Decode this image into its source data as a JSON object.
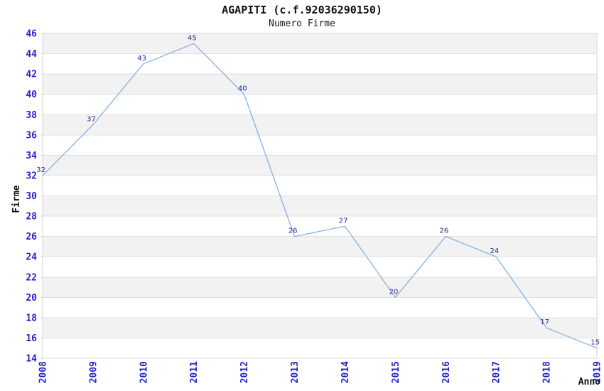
{
  "header": {
    "title": "AGAPITI (c.f.92036290150)",
    "subtitle": "Numero Firme"
  },
  "chart_data": {
    "type": "line",
    "title": "AGAPITI (c.f.92036290150)",
    "subtitle": "Numero Firme",
    "x": [
      2008,
      2009,
      2010,
      2011,
      2012,
      2013,
      2014,
      2015,
      2016,
      2017,
      2018,
      2019
    ],
    "series": [
      {
        "name": "Numero Firme",
        "values": [
          32,
          37,
          43,
          45,
          40,
          26,
          27,
          20,
          26,
          24,
          17,
          15
        ]
      }
    ],
    "data_labels_visible": true,
    "xlabel": "Anno",
    "ylabel": "Firme",
    "ylim": [
      14,
      46
    ],
    "ytick_step": 2,
    "grid": "horizontal-bands-alternating",
    "legend": "none",
    "markers": "none"
  },
  "colors": {
    "line": "#85b2e6",
    "data_label": "#28288e",
    "tick_label": "#2424c8",
    "axis_title": "#111111",
    "band_gray": "#f2f2f2",
    "band_white": "#ffffff",
    "grid_line": "#e0e0e0",
    "border": "#d6d6d6",
    "title_text": "#111111"
  }
}
